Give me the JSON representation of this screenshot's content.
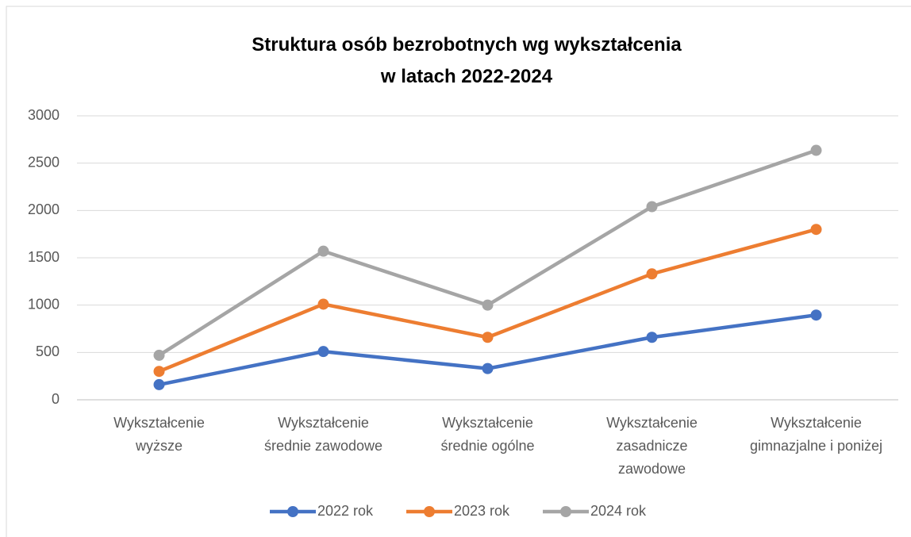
{
  "chart_data": {
    "type": "line",
    "title": "Struktura osób bezrobotnych wg wykształcenia\nw latach 2022-2024",
    "categories": [
      "Wykształcenie\nwyższe",
      "Wykształcenie\nśrednie zawodowe",
      "Wykształcenie\nśrednie ogólne",
      "Wykształcenie\nzasadnicze\nzawodowe",
      "Wykształcenie\ngimnazjalne i poniżej"
    ],
    "series": [
      {
        "name": "2022 rok",
        "color": "#4472c4",
        "values": [
          160,
          510,
          330,
          660,
          895
        ]
      },
      {
        "name": "2023 rok",
        "color": "#ed7d31",
        "values": [
          300,
          1010,
          660,
          1330,
          1800
        ]
      },
      {
        "name": "2024 rok",
        "color": "#a5a5a5",
        "values": [
          470,
          1570,
          1000,
          2040,
          2635
        ]
      }
    ],
    "ylim": [
      0,
      3000
    ],
    "yticks": [
      0,
      500,
      1000,
      1500,
      2000,
      2500,
      3000
    ],
    "grid": true,
    "legend": "bottom"
  }
}
